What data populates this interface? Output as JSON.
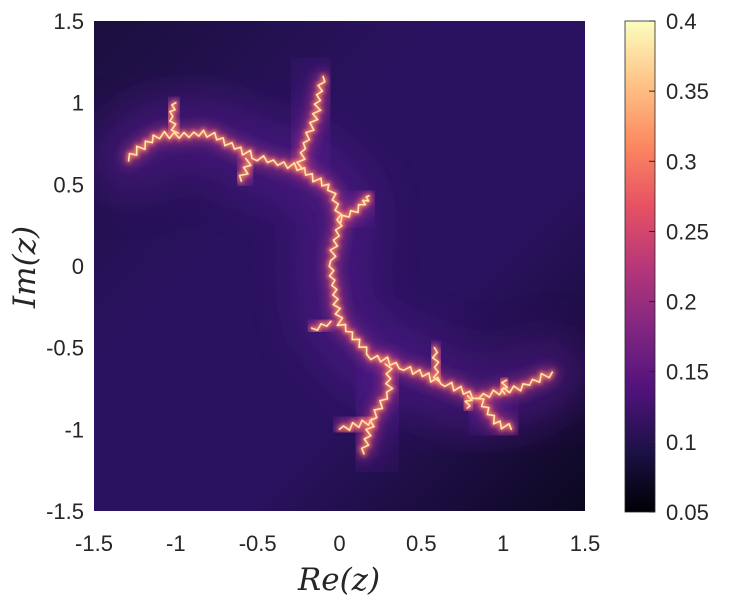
{
  "chart_data": {
    "type": "heatmap",
    "title": "",
    "xlabel": "Re(z)",
    "ylabel": "Im(z)",
    "xlim": [
      -1.5,
      1.5
    ],
    "ylim": [
      -1.5,
      1.5
    ],
    "x_ticks": [
      -1.5,
      -1,
      -0.5,
      0,
      0.5,
      1,
      1.5
    ],
    "x_tick_labels": [
      "-1.5",
      "-1",
      "-0.5",
      "0",
      "0.5",
      "1",
      "1.5"
    ],
    "y_ticks": [
      1.5,
      1,
      0.5,
      0,
      -0.5,
      -1,
      -1.5
    ],
    "y_tick_labels": [
      "1.5",
      "1",
      "0.5",
      "0",
      "-0.5",
      "-1",
      "-1.5"
    ],
    "colorbar": {
      "range": [
        0.05,
        0.4
      ],
      "ticks": [
        0.4,
        0.35,
        0.3,
        0.25,
        0.2,
        0.15,
        0.1,
        0.05
      ],
      "tick_labels": [
        "0.4",
        "0.35",
        "0.3",
        "0.25",
        "0.2",
        "0.15",
        "0.1",
        "0.05"
      ],
      "colormap": [
        "#000004",
        "#1d1147",
        "#51127c",
        "#822681",
        "#b73779",
        "#e75263",
        "#fc8961",
        "#fec488",
        "#fcfdbf"
      ]
    },
    "grid": false,
    "background_value": 0.1,
    "fractal_spine": [
      [
        -1.3,
        0.66
      ],
      [
        -1.1,
        0.8
      ],
      [
        -0.8,
        0.81
      ],
      [
        -0.5,
        0.66
      ],
      [
        -0.25,
        0.6
      ],
      [
        -0.05,
        0.47
      ],
      [
        0.0,
        0.28
      ],
      [
        -0.05,
        0.0
      ],
      [
        0.0,
        -0.35
      ],
      [
        0.2,
        -0.55
      ],
      [
        0.4,
        -0.62
      ],
      [
        0.65,
        -0.72
      ],
      [
        0.85,
        -0.8
      ],
      [
        1.1,
        -0.75
      ],
      [
        1.3,
        -0.65
      ]
    ],
    "fractal_branches": [
      [
        [
          -0.25,
          0.6
        ],
        [
          -0.2,
          0.78
        ],
        [
          -0.15,
          0.9
        ],
        [
          -0.1,
          1.16
        ]
      ],
      [
        [
          -1.0,
          0.81
        ],
        [
          -1.03,
          0.92
        ],
        [
          -1.0,
          1.0
        ]
      ],
      [
        [
          -0.55,
          0.65
        ],
        [
          -0.6,
          0.52
        ]
      ],
      [
        [
          0.0,
          0.28
        ],
        [
          0.15,
          0.38
        ],
        [
          0.18,
          0.43
        ]
      ],
      [
        [
          -0.05,
          -0.35
        ],
        [
          -0.17,
          -0.38
        ]
      ],
      [
        [
          0.3,
          -0.6
        ],
        [
          0.3,
          -0.78
        ],
        [
          0.2,
          -0.95
        ],
        [
          0.15,
          -1.15
        ]
      ],
      [
        [
          0.2,
          -0.95
        ],
        [
          0.0,
          -1.0
        ]
      ],
      [
        [
          0.6,
          -0.71
        ],
        [
          0.58,
          -0.5
        ]
      ],
      [
        [
          0.85,
          -0.8
        ],
        [
          0.95,
          -0.95
        ],
        [
          1.05,
          -1.0
        ]
      ],
      [
        [
          0.8,
          -0.8
        ],
        [
          0.78,
          -0.87
        ]
      ],
      [
        [
          1.0,
          -0.78
        ],
        [
          1.02,
          -0.7
        ]
      ]
    ]
  }
}
